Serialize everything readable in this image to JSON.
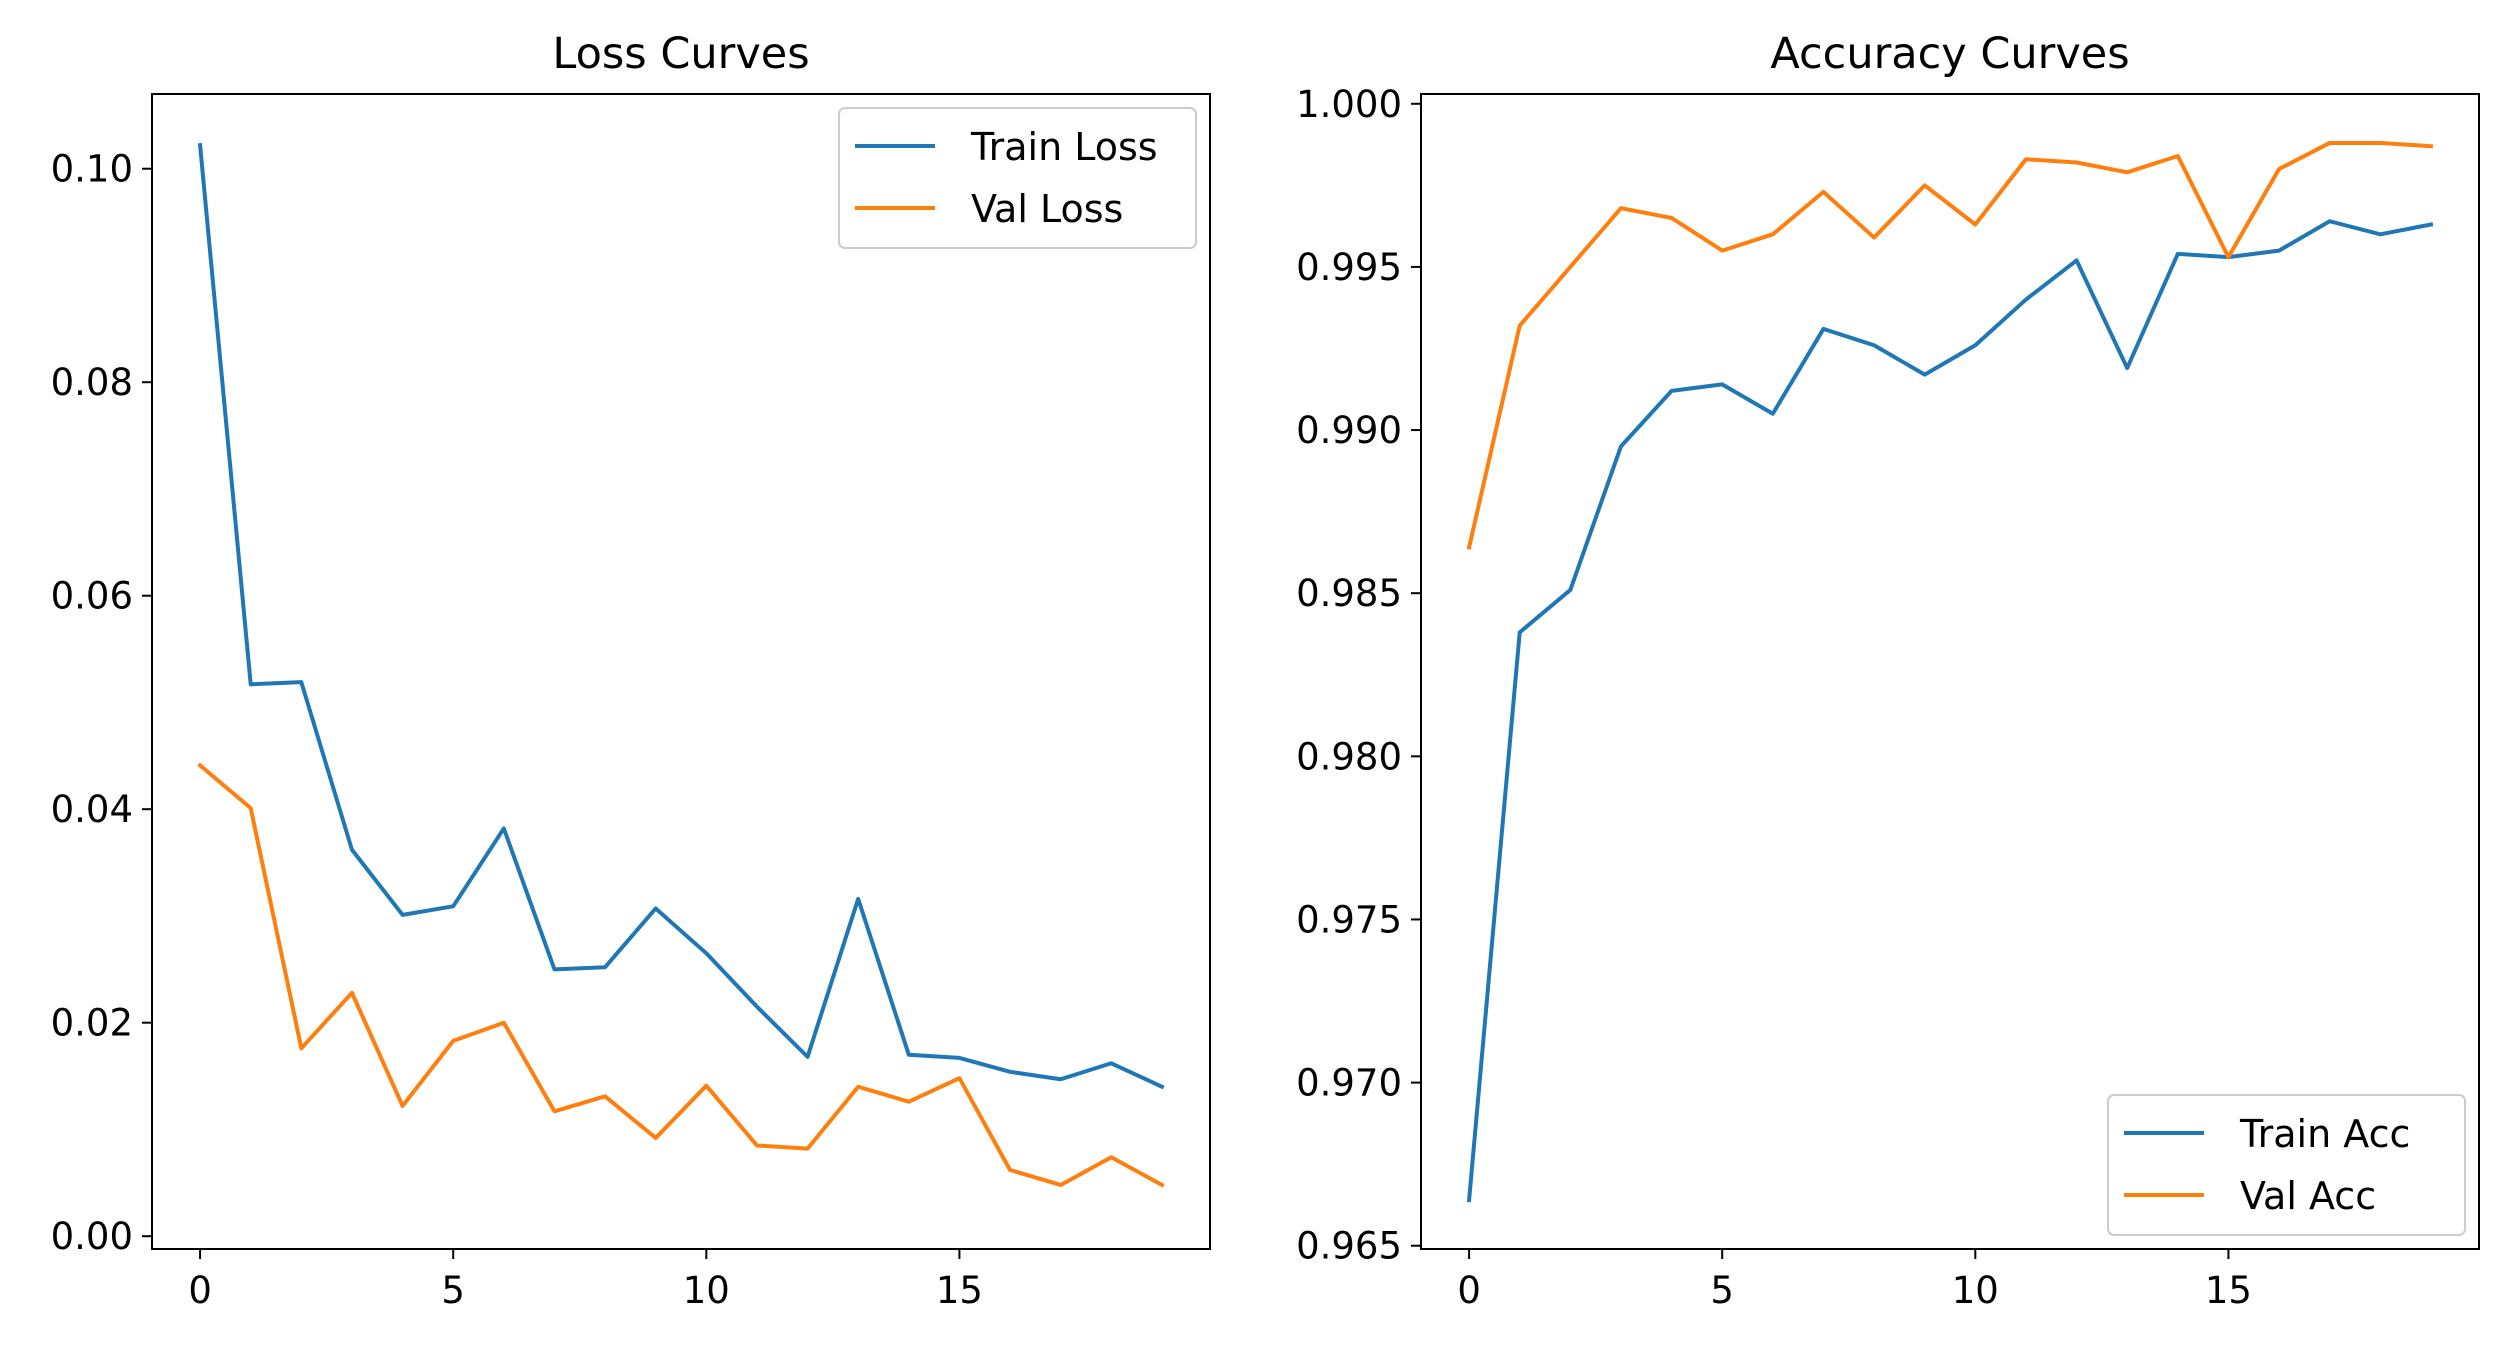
{
  "chart_data": [
    {
      "type": "line",
      "title": "Loss Curves",
      "xlabel": "",
      "ylabel": "",
      "xlim": [
        -0.95,
        19.95
      ],
      "ylim": [
        -0.0012,
        0.107
      ],
      "xticks": [
        0,
        5,
        10,
        15
      ],
      "xtick_labels": [
        "0",
        "5",
        "10",
        "15"
      ],
      "yticks": [
        0.0,
        0.02,
        0.04,
        0.06,
        0.08,
        0.1
      ],
      "ytick_labels": [
        "0.00",
        "0.02",
        "0.04",
        "0.06",
        "0.08",
        "0.10"
      ],
      "grid": false,
      "legend_position": "top-right",
      "x": [
        0,
        1,
        2,
        3,
        4,
        5,
        6,
        7,
        8,
        9,
        10,
        11,
        12,
        13,
        14,
        15,
        16,
        17,
        18,
        19
      ],
      "series": [
        {
          "name": "Train Loss",
          "color": "#1f77b4",
          "values": [
            0.1022,
            0.0517,
            0.0519,
            0.0362,
            0.0301,
            0.0309,
            0.0382,
            0.025,
            0.0252,
            0.0307,
            0.0265,
            0.0215,
            0.0168,
            0.0316,
            0.017,
            0.0167,
            0.0154,
            0.0147,
            0.0162,
            0.014
          ]
        },
        {
          "name": "Val Loss",
          "color": "#ff7f0e",
          "values": [
            0.0441,
            0.0401,
            0.0176,
            0.0228,
            0.0122,
            0.0183,
            0.02,
            0.0117,
            0.0131,
            0.0092,
            0.0141,
            0.0085,
            0.0082,
            0.014,
            0.0126,
            0.0148,
            0.0062,
            0.0048,
            0.0074,
            0.0048
          ]
        }
      ]
    },
    {
      "type": "line",
      "title": "Accuracy Curves",
      "xlabel": "",
      "ylabel": "",
      "xlim": [
        -0.95,
        19.95
      ],
      "ylim": [
        0.9649,
        1.0003
      ],
      "xticks": [
        0,
        5,
        10,
        15
      ],
      "xtick_labels": [
        "0",
        "5",
        "10",
        "15"
      ],
      "yticks": [
        0.965,
        0.97,
        0.975,
        0.98,
        0.985,
        0.99,
        0.995,
        1.0
      ],
      "ytick_labels": [
        "0.965",
        "0.970",
        "0.975",
        "0.980",
        "0.985",
        "0.990",
        "0.995",
        "1.000"
      ],
      "grid": false,
      "legend_position": "bottom-right",
      "x": [
        0,
        1,
        2,
        3,
        4,
        5,
        6,
        7,
        8,
        9,
        10,
        11,
        12,
        13,
        14,
        15,
        16,
        17,
        18,
        19
      ],
      "series": [
        {
          "name": "Train Acc",
          "color": "#1f77b4",
          "values": [
            0.9664,
            0.9838,
            0.9851,
            0.9895,
            0.9912,
            0.9914,
            0.9905,
            0.9931,
            0.9926,
            0.9917,
            0.9926,
            0.994,
            0.9952,
            0.9919,
            0.9954,
            0.9953,
            0.9955,
            0.9964,
            0.996,
            0.9963
          ]
        },
        {
          "name": "Val Acc",
          "color": "#ff7f0e",
          "values": [
            0.9864,
            0.9932,
            0.995,
            0.9968,
            0.9965,
            0.9955,
            0.996,
            0.9973,
            0.9959,
            0.9975,
            0.9963,
            0.9983,
            0.9982,
            0.9979,
            0.9984,
            0.9953,
            0.998,
            0.9988,
            0.9988,
            0.9987
          ]
        }
      ]
    }
  ]
}
